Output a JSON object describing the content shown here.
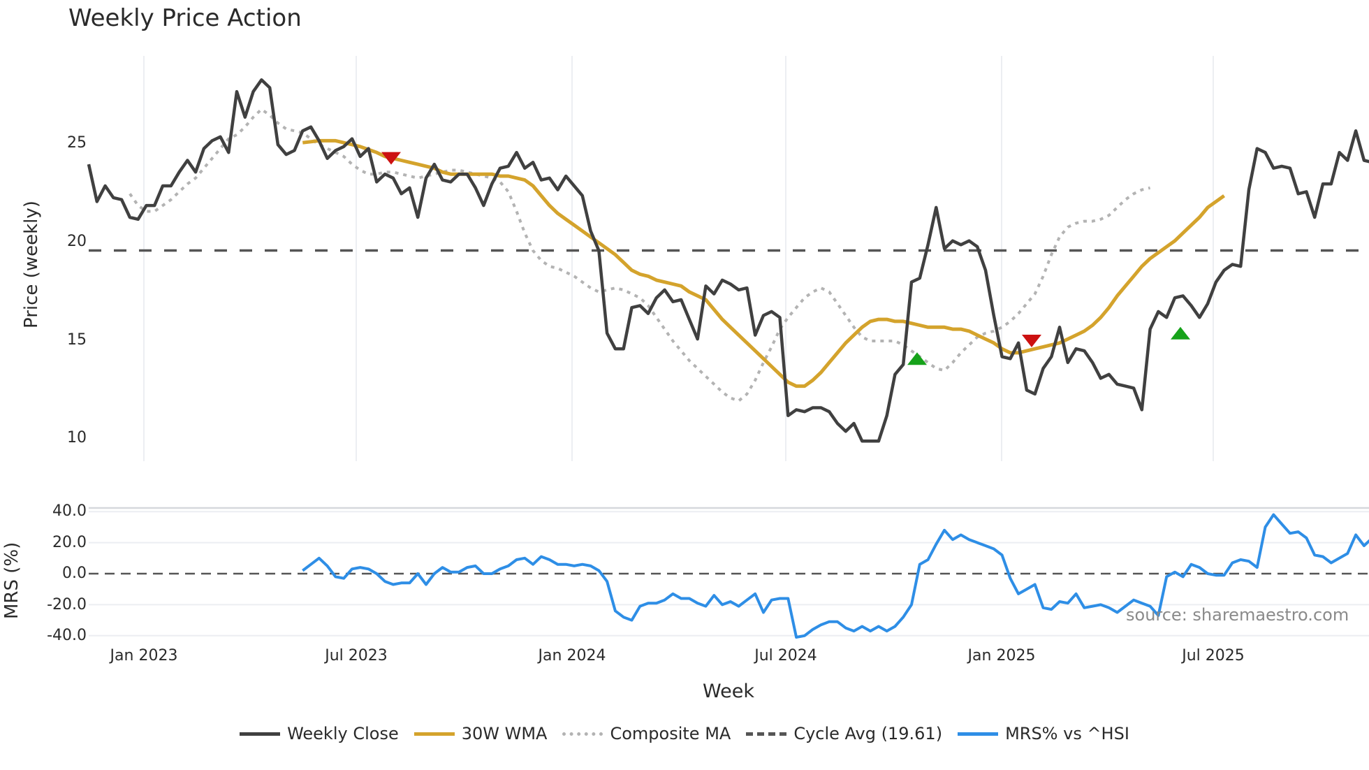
{
  "title": "Weekly Price Action",
  "source_note": "source: sharemaestro.com",
  "axes": {
    "price_ylabel": "Price (weekly)",
    "mrs_ylabel": "MRS (%)",
    "xlabel": "Week",
    "price_ticks": [
      "25",
      "20",
      "15",
      "10"
    ],
    "mrs_ticks": [
      "40.0",
      "20.0",
      "0.0",
      "-20.0",
      "-40.0"
    ],
    "x_ticks": [
      "Jan 2023",
      "Jul 2023",
      "Jan 2024",
      "Jul 2024",
      "Jan 2025",
      "Jul 2025"
    ]
  },
  "legend": [
    {
      "label": "Weekly Close",
      "color": "#404040",
      "style": "solid"
    },
    {
      "label": "30W WMA",
      "color": "#d4a32c",
      "style": "solid"
    },
    {
      "label": "Composite MA",
      "color": "#b3b3b3",
      "style": "dotted"
    },
    {
      "label": "Cycle Avg (19.61)",
      "color": "#555555",
      "style": "dashed"
    },
    {
      "label": "MRS% vs ^HSI",
      "color": "#2e8ee6",
      "style": "solid"
    }
  ],
  "colors": {
    "close": "#404040",
    "wma": "#d4a32c",
    "composite": "#b3b3b3",
    "cycle": "#555555",
    "mrs": "#2e8ee6",
    "sell_marker": "#cc1111",
    "buy_marker": "#16a21a",
    "grid": "#eceef2"
  },
  "chart_data": [
    {
      "type": "line",
      "title": "Weekly Price Action",
      "xlabel": "Week",
      "ylabel": "Price (weekly)",
      "ylim": [
        9,
        29
      ],
      "x_tick_labels": [
        "Jan 2023",
        "Jul 2023",
        "Jan 2024",
        "Jul 2024",
        "Jan 2025",
        "Jul 2025"
      ],
      "grid": true,
      "legend_position": "bottom",
      "series": [
        {
          "name": "Weekly Close",
          "start_week": "2022-11-14",
          "values": [
            24.0,
            22.1,
            22.9,
            22.3,
            22.2,
            21.3,
            21.2,
            21.9,
            21.9,
            22.9,
            22.9,
            23.6,
            24.2,
            23.6,
            24.8,
            25.2,
            25.4,
            24.6,
            27.7,
            26.4,
            27.7,
            28.3,
            27.9,
            25.0,
            24.5,
            24.7,
            25.7,
            25.9,
            25.2,
            24.3,
            24.7,
            24.9,
            25.3,
            24.4,
            24.8,
            23.1,
            23.5,
            23.3,
            22.5,
            22.8,
            21.3,
            23.3,
            24.0,
            23.2,
            23.1,
            23.5,
            23.5,
            22.8,
            21.9,
            23.0,
            23.8,
            23.9,
            24.6,
            23.8,
            24.1,
            23.2,
            23.3,
            22.7,
            23.4,
            22.9,
            22.4,
            20.6,
            19.6,
            15.4,
            14.6,
            14.6,
            16.7,
            16.8,
            16.4,
            17.2,
            17.6,
            17.0,
            17.1,
            16.1,
            15.1,
            17.8,
            17.4,
            18.1,
            17.9,
            17.6,
            17.7,
            15.3,
            16.3,
            16.5,
            16.2,
            11.2,
            11.5,
            11.4,
            11.6,
            11.6,
            11.4,
            10.8,
            10.4,
            10.8,
            9.9,
            9.9,
            9.9,
            11.2,
            13.3,
            13.8,
            18.0,
            18.2,
            19.9,
            21.8,
            19.7,
            20.1,
            19.9,
            20.1,
            19.8,
            18.6,
            16.3,
            14.2,
            14.1,
            14.9,
            12.5,
            12.3,
            13.6,
            14.2,
            15.7,
            13.9,
            14.6,
            14.5,
            13.9,
            13.1,
            13.3,
            12.8,
            12.7,
            12.6,
            11.5,
            15.6,
            16.5,
            16.2,
            17.2,
            17.3,
            16.8,
            16.2,
            16.9,
            18.0,
            18.6,
            18.9,
            18.8,
            22.7,
            24.8,
            24.6,
            23.8,
            23.9,
            23.8,
            22.5,
            22.6,
            21.3,
            23.0,
            23.0,
            24.6,
            24.2,
            25.7,
            24.2,
            24.1
          ]
        },
        {
          "name": "30W WMA",
          "start_week": "2023-05-15",
          "values": [
            25.1,
            25.15,
            25.2,
            25.2,
            25.2,
            25.1,
            25.0,
            24.9,
            24.75,
            24.6,
            24.4,
            24.3,
            24.2,
            24.1,
            24.0,
            23.9,
            23.8,
            23.6,
            23.5,
            23.5,
            23.5,
            23.5,
            23.5,
            23.5,
            23.4,
            23.4,
            23.3,
            23.2,
            22.9,
            22.4,
            21.9,
            21.5,
            21.2,
            20.9,
            20.6,
            20.3,
            20.0,
            19.7,
            19.4,
            19.0,
            18.6,
            18.4,
            18.3,
            18.1,
            18.0,
            17.9,
            17.8,
            17.5,
            17.3,
            17.1,
            16.6,
            16.1,
            15.7,
            15.3,
            14.9,
            14.5,
            14.1,
            13.7,
            13.3,
            12.9,
            12.7,
            12.7,
            13.0,
            13.4,
            13.9,
            14.4,
            14.9,
            15.3,
            15.7,
            16.0,
            16.1,
            16.1,
            16.0,
            16.0,
            15.9,
            15.8,
            15.7,
            15.7,
            15.7,
            15.6,
            15.6,
            15.5,
            15.3,
            15.1,
            14.9,
            14.6,
            14.4,
            14.4,
            14.5,
            14.6,
            14.7,
            14.8,
            14.9,
            15.1,
            15.3,
            15.5,
            15.8,
            16.2,
            16.7,
            17.3,
            17.8,
            18.3,
            18.8,
            19.2,
            19.5,
            19.8,
            20.1,
            20.5,
            20.9,
            21.3,
            21.8,
            22.1,
            22.4
          ]
        },
        {
          "name": "Composite MA",
          "start_week": "2022-12-19",
          "values": [
            22.5,
            21.9,
            21.6,
            21.6,
            21.9,
            22.2,
            22.6,
            23.0,
            23.3,
            23.8,
            24.3,
            24.8,
            25.3,
            25.5,
            25.9,
            26.4,
            26.8,
            26.5,
            26.1,
            25.8,
            25.7,
            25.6,
            25.3,
            25.0,
            24.8,
            24.6,
            24.4,
            24.0,
            23.7,
            23.5,
            23.5,
            23.6,
            23.6,
            23.5,
            23.4,
            23.3,
            23.4,
            23.5,
            23.6,
            23.7,
            23.7,
            23.6,
            23.5,
            23.4,
            23.3,
            23.1,
            22.6,
            21.6,
            20.5,
            19.6,
            19.1,
            18.8,
            18.7,
            18.5,
            18.3,
            18.0,
            17.7,
            17.5,
            17.6,
            17.7,
            17.6,
            17.4,
            17.2,
            16.8,
            16.2,
            15.6,
            15.0,
            14.5,
            14.0,
            13.6,
            13.2,
            12.8,
            12.4,
            12.1,
            11.95,
            12.3,
            13.0,
            13.9,
            14.7,
            15.6,
            16.2,
            16.7,
            17.2,
            17.5,
            17.7,
            17.5,
            16.9,
            16.3,
            15.7,
            15.2,
            15.0,
            15.0,
            15.0,
            15.0,
            14.8,
            14.5,
            14.2,
            13.9,
            13.6,
            13.5,
            13.9,
            14.4,
            14.8,
            15.2,
            15.4,
            15.5,
            15.7,
            16.0,
            16.4,
            16.9,
            17.4,
            18.3,
            19.4,
            20.3,
            20.8,
            21.0,
            21.1,
            21.1,
            21.2,
            21.4,
            21.8,
            22.2,
            22.5,
            22.7,
            22.8
          ]
        },
        {
          "name": "Cycle Avg (19.61)",
          "constant": 19.61
        }
      ],
      "markers": [
        {
          "type": "sell",
          "shape": "triangle-down",
          "color": "#cc1111",
          "approx_date": "Aug 2023",
          "price": 24.3
        },
        {
          "type": "buy",
          "shape": "triangle-up",
          "color": "#16a21a",
          "approx_date": "Oct 2024",
          "price": 14.1
        },
        {
          "type": "sell",
          "shape": "triangle-down",
          "color": "#cc1111",
          "approx_date": "Feb 2025",
          "price": 15.0
        },
        {
          "type": "buy",
          "shape": "triangle-up",
          "color": "#16a21a",
          "approx_date": "Jun 2025",
          "price": 15.4
        }
      ]
    },
    {
      "type": "line",
      "title": "",
      "ylabel": "MRS (%)",
      "ylim": [
        -43,
        43
      ],
      "y_ticks": [
        40,
        20,
        0,
        -20,
        -40
      ],
      "zero_line": "dashed",
      "series": [
        {
          "name": "MRS% vs ^HSI",
          "start_week": "2023-05-15",
          "values": [
            2,
            6,
            10,
            5,
            -2,
            -3,
            3,
            4,
            3,
            0,
            -5,
            -7,
            -6,
            -6,
            0,
            -7,
            0,
            4,
            1,
            1,
            4,
            5,
            0,
            0,
            3,
            5,
            9,
            10,
            6,
            11,
            9,
            6,
            6,
            5,
            6,
            5,
            2,
            -5,
            -24,
            -28,
            -30,
            -21,
            -19,
            -19,
            -17,
            -13,
            -16,
            -16,
            -19,
            -21,
            -14,
            -20,
            -18,
            -21,
            -17,
            -13,
            -25,
            -17,
            -16,
            -16,
            -41,
            -40,
            -36,
            -33,
            -31,
            -31,
            -35,
            -37,
            -34,
            -37,
            -34,
            -37,
            -34,
            -28,
            -20,
            6,
            9,
            19,
            28,
            22,
            25,
            22,
            20,
            18,
            16,
            12,
            -3,
            -13,
            -10,
            -7,
            -22,
            -23,
            -18,
            -19,
            -13,
            -22,
            -21,
            -20,
            -22,
            -25,
            -21,
            -17,
            -19,
            -21,
            -27,
            -2,
            1,
            -2,
            6,
            4,
            0,
            -1,
            -1,
            7,
            9,
            8,
            4,
            30,
            38,
            32,
            26,
            27,
            23,
            12,
            11,
            7,
            10,
            13,
            25,
            18,
            23,
            17,
            12
          ]
        }
      ]
    }
  ]
}
